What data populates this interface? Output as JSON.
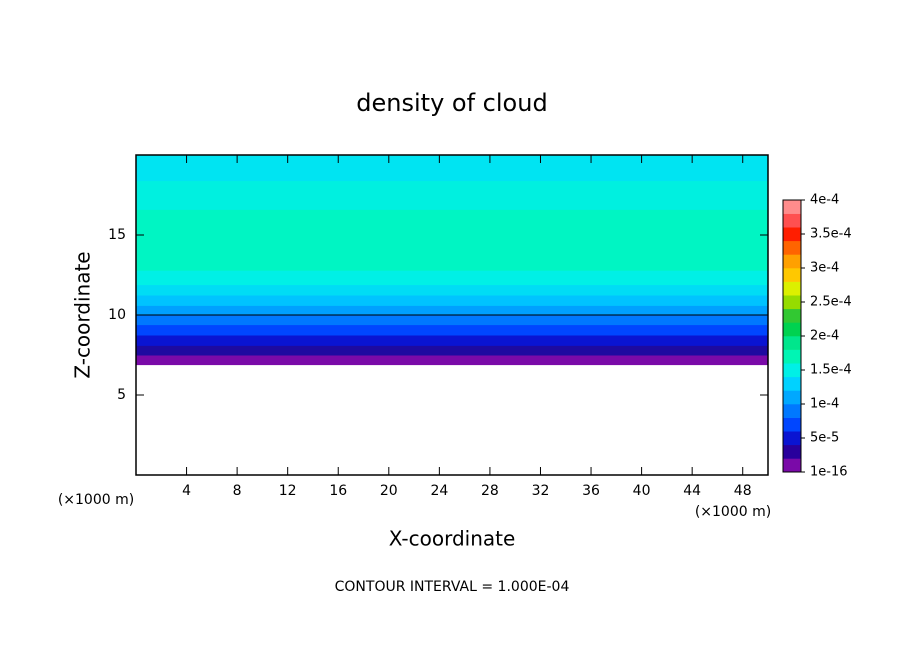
{
  "chart_data": {
    "type": "contour",
    "title": "density of cloud",
    "xlabel": "X-coordinate",
    "ylabel": "Z-coordinate",
    "x_unit": "(×1000 m)",
    "y_unit": "(×1000 m)",
    "annotation": "CONTOUR INTERVAL = 1.000E-04",
    "xlim": [
      0,
      50
    ],
    "ylim": [
      0,
      20
    ],
    "xticks": [
      4,
      8,
      12,
      16,
      20,
      24,
      28,
      32,
      36,
      40,
      44,
      48
    ],
    "yticks": [
      5,
      10,
      15
    ],
    "bands": {
      "z": [
        6.9,
        7.5,
        8.1,
        8.75,
        9.4,
        10,
        10.6,
        11.25,
        11.9,
        12.8,
        16.6,
        18.4,
        20
      ],
      "colors": [
        "#7a0aa8",
        "#1e0aa0",
        "#0a14d2",
        "#0046ff",
        "#0078ff",
        "#00a0ff",
        "#00c3ff",
        "#00dcf5",
        "#00f0e6",
        "#00f5c3",
        "#00f0e0",
        "#00e4f2"
      ]
    },
    "contour_line": 10,
    "colorbar": {
      "ticks": [
        {
          "value": 1e-16,
          "label": "1e-16"
        },
        {
          "value": 5e-05,
          "label": "5e-5"
        },
        {
          "value": 0.0001,
          "label": "1e-4"
        },
        {
          "value": 0.00015,
          "label": "1.5e-4"
        },
        {
          "value": 0.0002,
          "label": "2e-4"
        },
        {
          "value": 0.00025,
          "label": "2.5e-4"
        },
        {
          "value": 0.0003,
          "label": "3e-4"
        },
        {
          "value": 0.00035,
          "label": "3.5e-4"
        },
        {
          "value": 0.0004,
          "label": "4e-4"
        }
      ],
      "colors": [
        "#7a0aa8",
        "#28009c",
        "#0a14d2",
        "#0046ff",
        "#0078ff",
        "#00a8ff",
        "#00d2ff",
        "#00f0e6",
        "#00f5b4",
        "#00e68c",
        "#00d250",
        "#32c832",
        "#96dc00",
        "#dcf000",
        "#ffc800",
        "#ffa000",
        "#ff6400",
        "#ff1e00",
        "#ff5050",
        "#ff8c8c"
      ]
    }
  }
}
